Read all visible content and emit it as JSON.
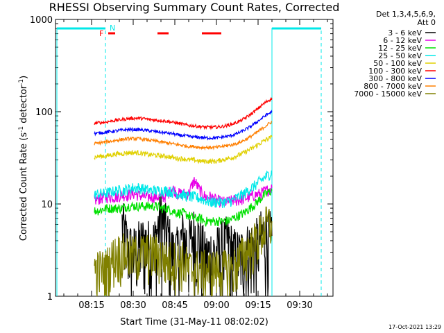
{
  "chart_data": {
    "type": "line",
    "title": "RHESSI Observing Summary Count Rates, Corrected",
    "xlabel": "Start Time (31-May-11 08:02:02)",
    "ylabel": "Corrected Count Rate (s⁻¹ detector⁻¹)",
    "ylabel_main": "Corrected Count Rate (s",
    "ylabel_sup1": "-1",
    "ylabel_mid": " detector",
    "ylabel_sup2": "-1",
    "ylabel_end": ")",
    "y_scale": "log",
    "ylim": [
      1,
      1000
    ],
    "y_ticks": [
      "1",
      "10",
      "100",
      "1000"
    ],
    "x_ticks": [
      "08:15",
      "08:30",
      "08:45",
      "09:00",
      "09:15",
      "09:30"
    ],
    "x_tick_minutes": [
      15,
      30,
      45,
      60,
      75,
      90
    ],
    "xlim_minutes": [
      2,
      102
    ],
    "legend_header": [
      "Det 1,3,4,5,6,9,",
      "Att 0"
    ],
    "legend_position": "right",
    "timestamp": "17-Oct-2021 13:29",
    "flag_labels": {
      "F": "F",
      "N": "N"
    },
    "series": [
      {
        "name": "3 - 6 keV",
        "color": "#000000",
        "x": [
          20,
          22,
          24,
          26,
          28,
          30,
          32,
          34,
          36,
          38,
          40,
          42,
          44,
          46,
          48,
          50,
          52,
          54,
          56,
          58,
          60,
          62,
          64,
          66,
          68,
          70,
          72,
          74,
          76,
          78,
          80
        ],
        "values": [
          null,
          null,
          null,
          6.0,
          3.5,
          3.0,
          3.5,
          4.0,
          3.5,
          4.0,
          7.5,
          5.0,
          3.0,
          3.0,
          4.5,
          3.5,
          5.0,
          4.0,
          2.6,
          3.0,
          3.0,
          3.5,
          4.0,
          3.0,
          2.8,
          3.0,
          3.5,
          3.5,
          4.5,
          4.5,
          4.5
        ]
      },
      {
        "name": "6 - 12 keV",
        "color": "#e800e8",
        "x": [
          16,
          18,
          20,
          22,
          24,
          26,
          28,
          30,
          32,
          34,
          36,
          38,
          40,
          42,
          44,
          46,
          48,
          50,
          52,
          54,
          56,
          58,
          60,
          62,
          64,
          66,
          68,
          70,
          72,
          74,
          76,
          78,
          80
        ],
        "values": [
          11,
          11.5,
          12,
          12,
          12,
          12.5,
          12.5,
          13,
          12.5,
          12,
          12,
          12,
          12,
          12,
          15,
          13,
          13,
          13,
          18,
          14,
          12,
          12,
          11,
          10.5,
          10.5,
          11,
          11,
          11.5,
          12,
          12.5,
          13,
          14,
          15
        ]
      },
      {
        "name": "12 - 25 keV",
        "color": "#00e000",
        "x": [
          16,
          18,
          20,
          22,
          24,
          26,
          28,
          30,
          32,
          34,
          36,
          38,
          40,
          42,
          44,
          46,
          48,
          50,
          52,
          54,
          56,
          58,
          60,
          62,
          64,
          66,
          68,
          70,
          72,
          74,
          76,
          78,
          80
        ],
        "values": [
          8.5,
          8.5,
          9,
          9,
          9,
          9,
          9.5,
          9.5,
          9.5,
          9.5,
          9.5,
          9.5,
          9,
          9,
          8.5,
          8,
          8,
          7.5,
          7,
          7,
          6.5,
          6.5,
          6.5,
          6.5,
          6.5,
          7,
          7.5,
          8,
          9,
          10,
          11.5,
          13,
          14
        ]
      },
      {
        "name": "25 - 50 keV",
        "color": "#00e8e8",
        "x": [
          16,
          18,
          20,
          22,
          24,
          26,
          28,
          30,
          32,
          34,
          36,
          38,
          40,
          42,
          44,
          46,
          48,
          50,
          52,
          54,
          56,
          58,
          60,
          62,
          64,
          66,
          68,
          70,
          72,
          74,
          76,
          78,
          80
        ],
        "values": [
          12.5,
          13,
          13,
          13.5,
          14,
          14,
          14.5,
          15,
          15,
          14.5,
          14,
          14,
          14,
          14,
          13.5,
          13,
          12.5,
          12,
          12,
          11.5,
          11,
          10.5,
          10.5,
          10.5,
          10.5,
          11,
          12,
          13,
          14.5,
          16,
          18,
          20,
          22
        ]
      },
      {
        "name": "50 - 100 keV",
        "color": "#e0d000",
        "x": [
          16,
          18,
          20,
          22,
          24,
          26,
          28,
          30,
          32,
          34,
          36,
          38,
          40,
          42,
          44,
          46,
          48,
          50,
          52,
          54,
          56,
          58,
          60,
          62,
          64,
          66,
          68,
          70,
          72,
          74,
          76,
          78,
          80
        ],
        "values": [
          32,
          33,
          33,
          34,
          35,
          35,
          36,
          36,
          36,
          35,
          34,
          34,
          33,
          33,
          32,
          31,
          31,
          30,
          30,
          29,
          29,
          29,
          29,
          30,
          31,
          32,
          34,
          36,
          39,
          42,
          46,
          50,
          53
        ]
      },
      {
        "name": "100 - 300 keV",
        "color": "#ff0000",
        "x": [
          16,
          18,
          20,
          22,
          24,
          26,
          28,
          30,
          32,
          34,
          36,
          38,
          40,
          42,
          44,
          46,
          48,
          50,
          52,
          54,
          56,
          58,
          60,
          62,
          64,
          66,
          68,
          70,
          72,
          74,
          76,
          78,
          80
        ],
        "values": [
          75,
          76,
          77,
          79,
          81,
          82,
          84,
          85,
          85,
          84,
          82,
          81,
          80,
          79,
          77,
          75,
          73,
          71,
          70,
          69,
          68,
          68,
          68,
          69,
          71,
          74,
          78,
          84,
          92,
          102,
          115,
          128,
          140
        ]
      },
      {
        "name": "300 - 800 keV",
        "color": "#0000ff",
        "x": [
          16,
          18,
          20,
          22,
          24,
          26,
          28,
          30,
          32,
          34,
          36,
          38,
          40,
          42,
          44,
          46,
          48,
          50,
          52,
          54,
          56,
          58,
          60,
          62,
          64,
          66,
          68,
          70,
          72,
          74,
          76,
          78,
          80
        ],
        "values": [
          58,
          59,
          60,
          61,
          62,
          63,
          64,
          64,
          64,
          63,
          62,
          61,
          60,
          59,
          58,
          56,
          55,
          54,
          53,
          53,
          52,
          52,
          52,
          53,
          54,
          56,
          59,
          63,
          68,
          75,
          83,
          92,
          100
        ]
      },
      {
        "name": "800 - 7000 keV",
        "color": "#ff7f00",
        "x": [
          16,
          18,
          20,
          22,
          24,
          26,
          28,
          30,
          32,
          34,
          36,
          38,
          40,
          42,
          44,
          46,
          48,
          50,
          52,
          54,
          56,
          58,
          60,
          62,
          64,
          66,
          68,
          70,
          72,
          74,
          76,
          78,
          80
        ],
        "values": [
          45,
          46,
          47,
          48,
          49,
          50,
          51,
          51,
          51,
          50,
          49,
          48,
          47,
          46,
          45,
          44,
          43,
          42,
          42,
          41,
          41,
          41,
          41,
          42,
          43,
          44,
          46,
          49,
          53,
          58,
          64,
          71,
          78
        ]
      },
      {
        "name": "7000 - 15000 keV",
        "color": "#808000",
        "x": [
          16,
          18,
          20,
          22,
          24,
          26,
          28,
          30,
          32,
          34,
          36,
          38,
          40,
          42,
          44,
          46,
          48,
          50,
          52,
          54,
          56,
          58,
          60,
          62,
          64,
          66,
          68,
          70,
          72,
          74,
          76,
          78,
          80
        ],
        "values": [
          2,
          2,
          2,
          2.5,
          3,
          3,
          3,
          2.8,
          3,
          3,
          3,
          3,
          2.8,
          2.5,
          2.5,
          2.5,
          2.5,
          2,
          2,
          2,
          2,
          2,
          2,
          2,
          2,
          2,
          2.5,
          3,
          3.5,
          4,
          5,
          6,
          6.5
        ]
      }
    ]
  }
}
